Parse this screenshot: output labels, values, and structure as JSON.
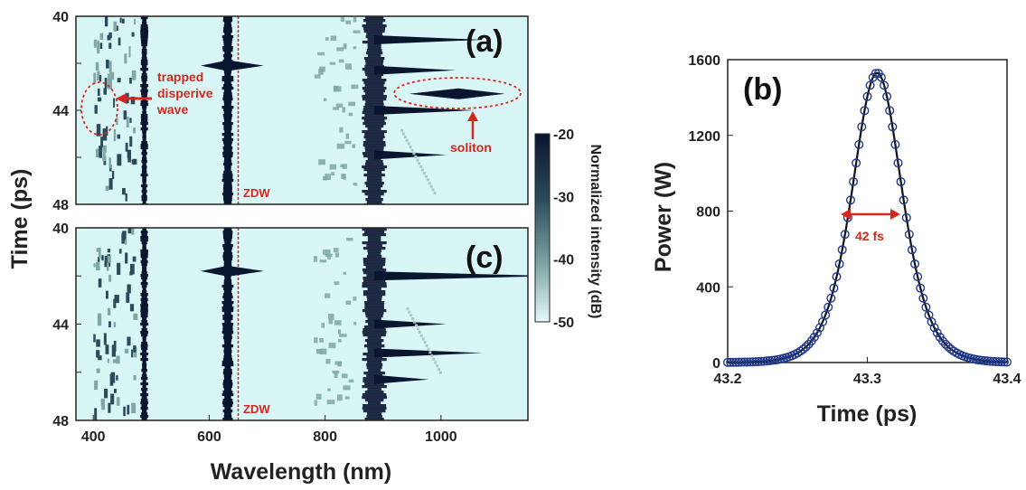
{
  "chart_data": [
    {
      "id": "a",
      "type": "heatmap",
      "panel_label": "(a)",
      "xlabel": "Wavelength (nm)",
      "ylabel": "Time (ps)",
      "xlim": [
        370,
        1150
      ],
      "ylim": [
        40,
        48
      ],
      "x_ticks": [
        400,
        600,
        800,
        1000
      ],
      "y_ticks": [
        40,
        44,
        48
      ],
      "zdw_nm": 650,
      "zdw_label": "ZDW",
      "colorbar": {
        "label": "Normalized intensity (dB)",
        "range": [
          -50,
          -20
        ],
        "ticks": [
          -20,
          -30,
          -40,
          -50
        ]
      },
      "background_color": "#d8f6f6",
      "annotations": [
        {
          "text": "trapped disperive wave",
          "lines": [
            "trapped",
            "disperive",
            "wave"
          ]
        },
        {
          "text": "soliton"
        }
      ]
    },
    {
      "id": "c",
      "type": "heatmap",
      "panel_label": "(c)",
      "xlabel": "Wavelength (nm)",
      "ylabel": "Time (ps)",
      "xlim": [
        370,
        1150
      ],
      "ylim": [
        40,
        48
      ],
      "x_ticks": [
        400,
        600,
        800,
        1000
      ],
      "y_ticks": [
        40,
        44,
        48
      ],
      "zdw_nm": 650,
      "zdw_label": "ZDW"
    },
    {
      "id": "b",
      "type": "scatter",
      "panel_label": "(b)",
      "xlabel": "Time (ps)",
      "ylabel": "Power (W)",
      "xlim": [
        43.2,
        43.4
      ],
      "ylim": [
        0,
        1600
      ],
      "x_ticks": [
        "43.2",
        "43.3",
        "43.4"
      ],
      "y_ticks": [
        0,
        400,
        800,
        1200,
        1600
      ],
      "series": [
        {
          "style": "markers",
          "peak_power_w": 1530,
          "center_ps": 43.307,
          "fwhm_fs": 42,
          "color": "#1f3a8a"
        },
        {
          "style": "line",
          "peak_power_w": 1530,
          "center_ps": 43.307,
          "fwhm_fs": 42,
          "color": "#111111"
        }
      ],
      "fwhm_annotation": "42 fs"
    }
  ],
  "colors": {
    "annotation": "#d7261e",
    "map_background": "#d8f6f6",
    "map_dark": "#0a1530"
  }
}
